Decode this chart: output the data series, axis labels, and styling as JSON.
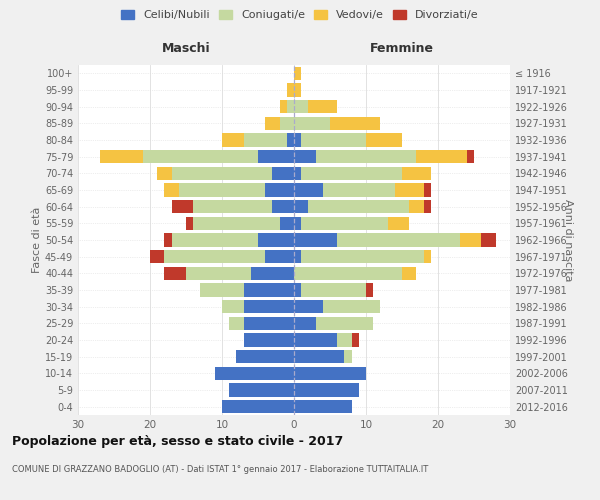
{
  "age_groups": [
    "0-4",
    "5-9",
    "10-14",
    "15-19",
    "20-24",
    "25-29",
    "30-34",
    "35-39",
    "40-44",
    "45-49",
    "50-54",
    "55-59",
    "60-64",
    "65-69",
    "70-74",
    "75-79",
    "80-84",
    "85-89",
    "90-94",
    "95-99",
    "100+"
  ],
  "birth_years": [
    "2012-2016",
    "2007-2011",
    "2002-2006",
    "1997-2001",
    "1992-1996",
    "1987-1991",
    "1982-1986",
    "1977-1981",
    "1972-1976",
    "1967-1971",
    "1962-1966",
    "1957-1961",
    "1952-1956",
    "1947-1951",
    "1942-1946",
    "1937-1941",
    "1932-1936",
    "1927-1931",
    "1922-1926",
    "1917-1921",
    "≤ 1916"
  ],
  "male_celibe": [
    10,
    9,
    11,
    8,
    7,
    7,
    7,
    7,
    6,
    4,
    5,
    2,
    3,
    4,
    3,
    5,
    1,
    0,
    0,
    0,
    0
  ],
  "male_coniugato": [
    0,
    0,
    0,
    0,
    0,
    2,
    3,
    6,
    9,
    14,
    12,
    12,
    11,
    12,
    14,
    16,
    6,
    2,
    1,
    0,
    0
  ],
  "male_vedovo": [
    0,
    0,
    0,
    0,
    0,
    0,
    0,
    0,
    0,
    0,
    0,
    0,
    0,
    2,
    2,
    6,
    3,
    2,
    1,
    1,
    0
  ],
  "male_divorziato": [
    0,
    0,
    0,
    0,
    0,
    0,
    0,
    0,
    3,
    2,
    1,
    1,
    3,
    0,
    0,
    0,
    0,
    0,
    0,
    0,
    0
  ],
  "female_celibe": [
    8,
    9,
    10,
    7,
    6,
    3,
    4,
    1,
    0,
    1,
    6,
    1,
    2,
    4,
    1,
    3,
    1,
    0,
    0,
    0,
    0
  ],
  "female_coniugato": [
    0,
    0,
    0,
    1,
    2,
    8,
    8,
    9,
    15,
    17,
    17,
    12,
    14,
    10,
    14,
    14,
    9,
    5,
    2,
    0,
    0
  ],
  "female_vedovo": [
    0,
    0,
    0,
    0,
    0,
    0,
    0,
    0,
    2,
    1,
    3,
    3,
    2,
    4,
    4,
    7,
    5,
    7,
    4,
    1,
    1
  ],
  "female_divorziato": [
    0,
    0,
    0,
    0,
    1,
    0,
    0,
    1,
    0,
    0,
    2,
    0,
    1,
    1,
    0,
    1,
    0,
    0,
    0,
    0,
    0
  ],
  "color_celibe": "#4472C4",
  "color_coniugato": "#c5d9a0",
  "color_vedovo": "#f5c342",
  "color_divorziato": "#c0392b",
  "title": "Popolazione per età, sesso e stato civile - 2017",
  "subtitle": "COMUNE DI GRAZZANO BADOGLIO (AT) - Dati ISTAT 1° gennaio 2017 - Elaborazione TUTTAITALIA.IT",
  "xlabel_left": "Maschi",
  "xlabel_right": "Femmine",
  "ylabel_left": "Fasce di età",
  "ylabel_right": "Anni di nascita",
  "xlim": 30,
  "background_color": "#f0f0f0",
  "plot_bg": "#ffffff"
}
